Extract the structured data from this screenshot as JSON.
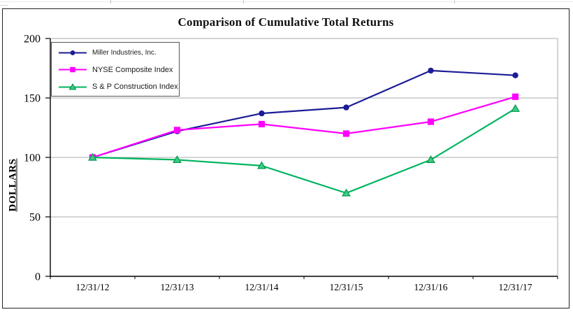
{
  "chart_data": {
    "type": "line",
    "title": "Comparison of Cumulative Total Returns",
    "xlabel": "",
    "ylabel": "DOLLARS",
    "categories": [
      "12/31/12",
      "12/31/13",
      "12/31/14",
      "12/31/15",
      "12/31/16",
      "12/31/17"
    ],
    "series": [
      {
        "name": "Miller Industries, Inc.",
        "marker": "circle",
        "color": "#1c1c96",
        "values": [
          100,
          122,
          137,
          142,
          173,
          169
        ]
      },
      {
        "name": "NYSE Composite Index",
        "marker": "square",
        "color": "#ff00ff",
        "values": [
          100,
          123,
          128,
          120,
          130,
          151
        ]
      },
      {
        "name": "S & P Construction Index",
        "marker": "triangle",
        "color": "#00b45f",
        "marker_fill": "#3fca85",
        "marker_stroke": "#00994d",
        "values": [
          100,
          98,
          93,
          70,
          98,
          141
        ]
      }
    ],
    "ylim": [
      0,
      200
    ],
    "yticks": [
      0,
      50,
      100,
      150,
      200
    ],
    "grid": true,
    "gridline_color": "#ababab",
    "legend_position": "top-left"
  }
}
